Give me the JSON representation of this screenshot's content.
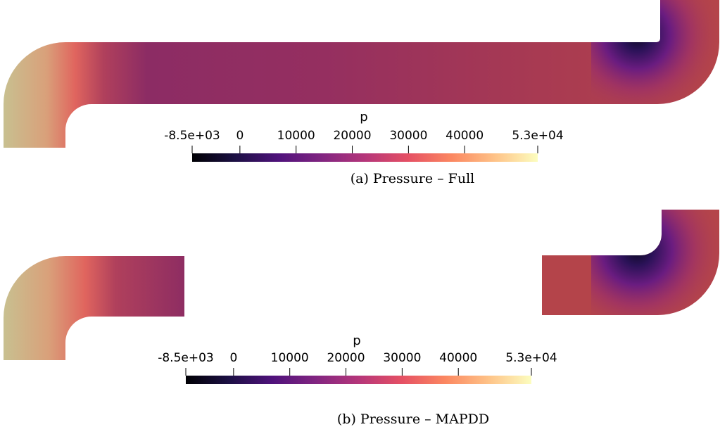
{
  "panels": [
    {
      "caption": "(a) Pressure – Full",
      "colorbar": {
        "title": "p",
        "ticks": [
          "-8.5e+03",
          "0",
          "10000",
          "20000",
          "30000",
          "40000",
          "5.3e+04"
        ],
        "tick_values": [
          -8500,
          0,
          10000,
          20000,
          30000,
          40000,
          53000
        ],
        "range": [
          -8500,
          53000
        ]
      }
    },
    {
      "caption": "(b) Pressure – MAPDD",
      "colorbar": {
        "title": "p",
        "ticks": [
          "-8.5e+03",
          "0",
          "10000",
          "20000",
          "30000",
          "40000",
          "5.3e+04"
        ],
        "tick_values": [
          -8500,
          0,
          10000,
          20000,
          30000,
          40000,
          53000
        ],
        "range": [
          -8500,
          53000
        ]
      }
    }
  ],
  "colormap": "magma",
  "colors": {
    "colormap_stops": [
      "#000004",
      "#1c1044",
      "#4f127b",
      "#812581",
      "#b5367a",
      "#e55064",
      "#fb8761",
      "#fec287",
      "#fcfdbf"
    ],
    "inlet": "#c8c090",
    "channel": "#a23a54",
    "outlet": "#b4444a",
    "low_pressure": "#120c2e"
  }
}
